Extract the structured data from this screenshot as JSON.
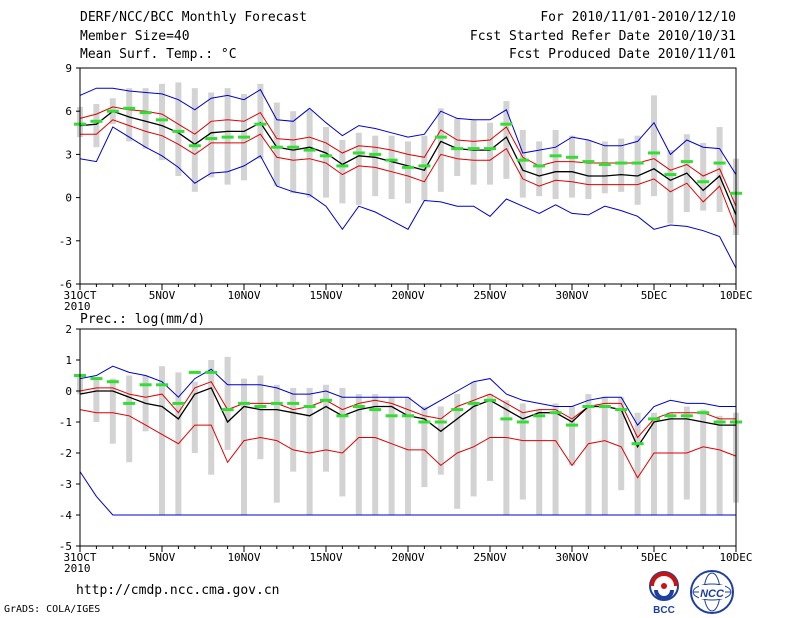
{
  "header": {
    "title": "DERF/NCC/BCC Monthly Forecast",
    "member_size": "Member Size=40",
    "variable_top": "Mean Surf. Temp.: °C",
    "forecast_range": "For 2010/11/01-2010/12/10",
    "start_date": "Fcst Started Refer Date 2010/10/31",
    "produced_date": "Fcst Produced Date 2010/11/01"
  },
  "footer": {
    "url": "http://cmdp.ncc.cma.gov.cn",
    "credit": "GrADS: COLA/IGES",
    "logo_bcc": "BCC",
    "logo_ncc": "NCC"
  },
  "colors": {
    "box": "#d3d3d3",
    "mean": "#000000",
    "spread": "#e00000",
    "extreme": "#0000cc",
    "marker": "#33dd33"
  },
  "chart_data": [
    {
      "type": "line",
      "name": "temperature",
      "ylabel": "Mean Surf. Temp.: °C",
      "ylim": [
        -6,
        9
      ],
      "yticks": [
        -6,
        -3,
        0,
        3,
        6,
        9
      ],
      "ytick_labels": [
        "-6",
        "-3",
        "0",
        "3",
        "6",
        "9"
      ],
      "xlim": [
        0,
        40
      ],
      "xticks": [
        0,
        5,
        10,
        15,
        20,
        25,
        30,
        35,
        40
      ],
      "xtick_labels": [
        "31OCT",
        "5NOV",
        "10NOV",
        "15NOV",
        "20NOV",
        "25NOV",
        "30NOV",
        "5DEC",
        "10DEC"
      ],
      "xtick_sublabel": "2010",
      "series": [
        {
          "name": "max",
          "role": "extreme",
          "values": [
            7.1,
            7.6,
            7.6,
            7.4,
            7.3,
            7.2,
            6.8,
            6.1,
            6.9,
            7.1,
            6.8,
            7.5,
            5.4,
            5.3,
            6.2,
            5.2,
            4.3,
            5.0,
            4.8,
            4.5,
            4.2,
            4.4,
            6.0,
            5.5,
            5.4,
            5.4,
            6.1,
            3.1,
            3.3,
            3.5,
            4.2,
            4.0,
            3.6,
            3.6,
            3.9,
            5.2,
            3.0,
            4.0,
            3.5,
            3.4,
            1.6
          ]
        },
        {
          "name": "upper",
          "role": "spread",
          "values": [
            5.5,
            5.8,
            6.3,
            6.1,
            6.0,
            5.8,
            5.1,
            4.4,
            5.3,
            5.4,
            5.3,
            5.9,
            4.1,
            4.0,
            4.2,
            3.8,
            3.1,
            3.6,
            3.5,
            3.3,
            3.0,
            2.8,
            4.7,
            4.0,
            3.9,
            4.0,
            4.9,
            2.8,
            2.2,
            2.5,
            2.5,
            2.4,
            2.4,
            2.4,
            2.4,
            2.7,
            1.9,
            2.3,
            1.5,
            2.0,
            -0.6
          ]
        },
        {
          "name": "mean",
          "role": "mean",
          "values": [
            5.0,
            5.1,
            6.0,
            5.6,
            5.3,
            5.0,
            4.5,
            3.7,
            4.5,
            4.6,
            4.6,
            5.2,
            3.5,
            3.3,
            3.5,
            3.1,
            2.3,
            2.9,
            2.8,
            2.5,
            2.2,
            1.9,
            3.9,
            3.4,
            3.3,
            3.3,
            4.2,
            1.9,
            1.5,
            1.8,
            1.8,
            1.5,
            1.5,
            1.6,
            1.5,
            2.0,
            1.2,
            1.7,
            0.5,
            1.5,
            -1.2
          ]
        },
        {
          "name": "lower",
          "role": "spread",
          "values": [
            4.4,
            4.4,
            5.4,
            5.0,
            4.6,
            4.3,
            3.7,
            3.0,
            3.8,
            3.8,
            3.8,
            4.4,
            2.8,
            2.6,
            2.7,
            2.4,
            1.6,
            2.2,
            2.1,
            1.8,
            1.5,
            1.1,
            3.0,
            2.7,
            2.6,
            2.6,
            3.4,
            1.3,
            0.8,
            1.2,
            1.1,
            0.9,
            0.9,
            0.9,
            0.9,
            1.3,
            0.4,
            1.0,
            -0.3,
            0.8,
            -2.1
          ]
        },
        {
          "name": "min",
          "role": "extreme",
          "values": [
            2.7,
            2.5,
            4.9,
            4.2,
            3.5,
            2.9,
            2.1,
            1.0,
            1.7,
            1.8,
            2.2,
            2.9,
            0.8,
            0.4,
            0.2,
            -0.6,
            -2.2,
            -0.6,
            -1.0,
            -1.6,
            -2.2,
            -0.2,
            -0.3,
            -0.6,
            -0.6,
            -1.3,
            -0.1,
            -0.6,
            -1.1,
            -0.5,
            -1.1,
            -1.2,
            -0.6,
            -0.9,
            -1.3,
            -2.2,
            -1.9,
            -2.0,
            -2.3,
            -2.7,
            -4.9
          ]
        },
        {
          "name": "box_top",
          "role": "box",
          "values": [
            6.3,
            6.5,
            6.9,
            7.6,
            7.6,
            7.9,
            8.0,
            7.6,
            7.3,
            7.6,
            7.2,
            7.9,
            6.6,
            6.0,
            6.1,
            4.9,
            4.0,
            4.5,
            4.3,
            4.3,
            3.9,
            4.3,
            6.2,
            5.5,
            5.4,
            5.2,
            6.7,
            4.7,
            3.9,
            4.7,
            4.3,
            4.0,
            3.9,
            4.1,
            4.3,
            7.1,
            3.3,
            4.4,
            3.8,
            4.9,
            2.7
          ]
        },
        {
          "name": "box_bottom",
          "role": "box",
          "values": [
            4.2,
            3.5,
            5.1,
            3.9,
            3.4,
            2.6,
            1.5,
            0.4,
            1.4,
            0.9,
            1.2,
            2.7,
            0.8,
            0.3,
            0.0,
            0.0,
            -0.4,
            -0.5,
            0.1,
            -0.1,
            -0.4,
            -0.2,
            0.4,
            1.5,
            0.9,
            0.9,
            1.3,
            0.0,
            0.1,
            -0.1,
            0.0,
            -0.1,
            0.3,
            0.4,
            -0.5,
            0.1,
            -1.8,
            -1.0,
            -0.9,
            -1.0,
            -2.6
          ]
        },
        {
          "name": "observed",
          "role": "marker",
          "values": [
            5.1,
            5.3,
            6.0,
            6.2,
            5.9,
            5.4,
            4.6,
            3.6,
            4.1,
            4.2,
            4.2,
            5.1,
            3.5,
            3.5,
            3.3,
            2.9,
            2.2,
            3.1,
            3.0,
            2.6,
            2.1,
            2.2,
            4.2,
            3.4,
            3.4,
            3.4,
            5.1,
            2.6,
            2.2,
            2.9,
            2.8,
            2.5,
            2.3,
            2.4,
            2.4,
            3.1,
            1.6,
            2.5,
            1.1,
            2.4,
            0.3
          ]
        }
      ]
    },
    {
      "type": "line",
      "name": "precipitation",
      "ylabel": "Prec.: log(mm/d)",
      "ylim": [
        -5,
        2
      ],
      "yticks": [
        -5,
        -4,
        -3,
        -2,
        -1,
        0,
        1,
        2
      ],
      "ytick_labels": [
        "-5",
        "-4",
        "-3",
        "-2",
        "-1",
        "0",
        "1",
        "2"
      ],
      "xlim": [
        0,
        40
      ],
      "xticks": [
        0,
        5,
        10,
        15,
        20,
        25,
        30,
        35,
        40
      ],
      "xtick_labels": [
        "31OCT",
        "5NOV",
        "10NOV",
        "15NOV",
        "20NOV",
        "25NOV",
        "30NOV",
        "5DEC",
        "10DEC"
      ],
      "xtick_sublabel": "2010",
      "series": [
        {
          "name": "max",
          "role": "extreme",
          "values": [
            0.4,
            0.5,
            0.8,
            0.6,
            0.5,
            0.3,
            -0.2,
            0.4,
            0.7,
            0.2,
            0.2,
            0.2,
            0.1,
            -0.1,
            -0.1,
            0.0,
            -0.2,
            -0.2,
            -0.2,
            -0.2,
            -0.2,
            -0.6,
            -0.3,
            0.0,
            0.3,
            0.4,
            -0.1,
            -0.3,
            -0.4,
            -0.5,
            -0.5,
            -0.3,
            -0.2,
            -0.2,
            -1.1,
            -0.5,
            -0.3,
            -0.4,
            -0.4,
            -0.5,
            -0.5
          ]
        },
        {
          "name": "upper",
          "role": "spread",
          "values": [
            0.0,
            0.1,
            0.1,
            -0.1,
            -0.2,
            -0.1,
            -0.7,
            0.1,
            0.3,
            -0.6,
            -0.4,
            -0.4,
            -0.4,
            -0.6,
            -0.5,
            -0.3,
            -0.6,
            -0.4,
            -0.3,
            -0.4,
            -0.6,
            -0.8,
            -0.9,
            -0.5,
            -0.3,
            -0.1,
            -0.4,
            -0.7,
            -0.6,
            -0.6,
            -0.9,
            -0.5,
            -0.4,
            -0.4,
            -1.5,
            -0.9,
            -0.7,
            -0.7,
            -0.7,
            -0.9,
            -0.9
          ]
        },
        {
          "name": "mean",
          "role": "mean",
          "values": [
            -0.1,
            0.0,
            0.0,
            -0.2,
            -0.4,
            -0.5,
            -0.9,
            -0.1,
            0.1,
            -1.0,
            -0.5,
            -0.6,
            -0.6,
            -0.7,
            -0.8,
            -0.5,
            -0.8,
            -0.6,
            -0.5,
            -0.5,
            -0.8,
            -0.9,
            -1.3,
            -0.9,
            -0.5,
            -0.3,
            -0.6,
            -0.9,
            -0.7,
            -0.7,
            -1.0,
            -0.5,
            -0.5,
            -0.6,
            -1.8,
            -1.0,
            -0.9,
            -0.9,
            -1.0,
            -1.1,
            -1.1
          ]
        },
        {
          "name": "lower",
          "role": "spread",
          "values": [
            -0.6,
            -0.7,
            -0.7,
            -0.8,
            -1.1,
            -1.4,
            -1.7,
            -1.1,
            -1.1,
            -2.3,
            -1.6,
            -1.5,
            -1.6,
            -1.9,
            -2.0,
            -1.9,
            -2.0,
            -1.5,
            -1.5,
            -1.7,
            -1.9,
            -1.9,
            -2.4,
            -2.0,
            -1.8,
            -1.5,
            -1.5,
            -1.6,
            -1.6,
            -1.6,
            -2.4,
            -1.7,
            -1.6,
            -1.8,
            -2.8,
            -2.0,
            -2.0,
            -2.0,
            -1.8,
            -1.9,
            -2.1
          ]
        },
        {
          "name": "min",
          "role": "extreme",
          "values": [
            -2.6,
            -3.4,
            -4.0,
            -4.0,
            -4.0,
            -4.0,
            -4.0,
            -4.0,
            -4.0,
            -4.0,
            -4.0,
            -4.0,
            -4.0,
            -4.0,
            -4.0,
            -4.0,
            -4.0,
            -4.0,
            -4.0,
            -4.0,
            -4.0,
            -4.0,
            -4.0,
            -4.0,
            -4.0,
            -4.0,
            -4.0,
            -4.0,
            -4.0,
            -4.0,
            -4.0,
            -4.0,
            -4.0,
            -4.0,
            -4.0,
            -4.0,
            -4.0,
            -4.0,
            -4.0,
            -4.0,
            -4.0
          ]
        },
        {
          "name": "box_top",
          "role": "box",
          "values": [
            0.5,
            0.4,
            0.4,
            0.5,
            0.5,
            0.8,
            0.6,
            0.3,
            1.0,
            1.1,
            0.4,
            0.5,
            0.2,
            0.1,
            0.1,
            0.2,
            0.1,
            -0.1,
            -0.1,
            -0.2,
            -0.2,
            -0.5,
            -0.5,
            -0.1,
            0.3,
            -0.1,
            -0.3,
            -0.4,
            -0.6,
            -0.4,
            -0.5,
            -0.1,
            -0.2,
            -0.2,
            -0.7,
            -0.7,
            -0.7,
            -0.5,
            -0.6,
            -0.8,
            -0.7
          ]
        },
        {
          "name": "box_bottom",
          "role": "box",
          "values": [
            -0.1,
            -1.0,
            -1.7,
            -2.3,
            -1.3,
            -4.0,
            -4.0,
            -2.0,
            -2.7,
            -1.9,
            -4.0,
            -2.2,
            -3.6,
            -2.6,
            -4.0,
            -2.6,
            -3.4,
            -4.0,
            -4.0,
            -4.0,
            -4.0,
            -3.1,
            -2.7,
            -3.8,
            -3.4,
            -2.9,
            -4.0,
            -3.5,
            -4.0,
            -4.0,
            -2.4,
            -4.0,
            -4.0,
            -3.2,
            -4.0,
            -4.0,
            -4.0,
            -3.5,
            -4.0,
            -4.0,
            -3.6
          ]
        },
        {
          "name": "observed",
          "role": "marker",
          "values": [
            0.5,
            0.4,
            0.3,
            -0.4,
            0.2,
            0.2,
            -0.4,
            0.6,
            0.6,
            -0.6,
            -0.4,
            -0.5,
            -0.4,
            -0.4,
            -0.5,
            -0.3,
            -0.8,
            -0.5,
            -0.6,
            -0.8,
            -0.8,
            -1.0,
            -1.0,
            -0.6,
            -0.4,
            -0.3,
            -0.9,
            -1.0,
            -0.8,
            -0.7,
            -1.1,
            -0.5,
            -0.5,
            -0.6,
            -1.7,
            -0.9,
            -0.8,
            -0.8,
            -0.7,
            -1.0,
            -1.0
          ]
        }
      ]
    }
  ]
}
